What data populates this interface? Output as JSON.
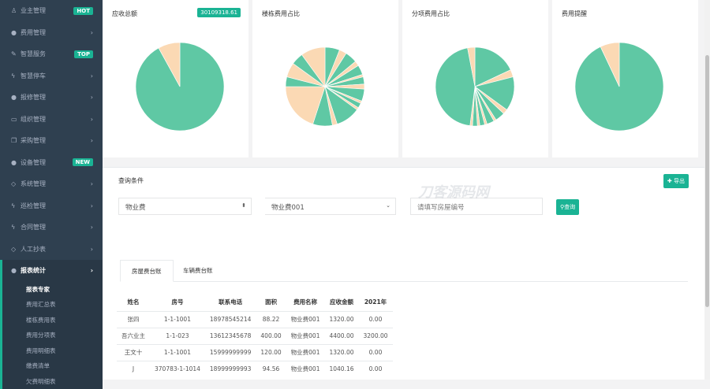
{
  "sidebar": {
    "items": [
      {
        "label": "业主管理",
        "icon": "user-icon",
        "badge": "HOT"
      },
      {
        "label": "费用管理",
        "icon": "globe-icon"
      },
      {
        "label": "智慧服务",
        "icon": "edit-icon",
        "badge": "TOP"
      },
      {
        "label": "智慧停车",
        "icon": "bolt-icon"
      },
      {
        "label": "报修管理",
        "icon": "globe-icon"
      },
      {
        "label": "组织管理",
        "icon": "desktop-icon"
      },
      {
        "label": "采购管理",
        "icon": "copy-icon"
      },
      {
        "label": "设备管理",
        "icon": "globe-icon",
        "badge": "NEW"
      },
      {
        "label": "系统管理",
        "icon": "diamond-icon"
      },
      {
        "label": "巡检管理",
        "icon": "bolt-icon"
      },
      {
        "label": "合同管理",
        "icon": "bolt-icon"
      },
      {
        "label": "人工抄表",
        "icon": "diamond-icon"
      },
      {
        "label": "报表统计",
        "icon": "globe-icon",
        "active": true
      }
    ],
    "sub_items": [
      "报表专家",
      "费用汇总表",
      "楼栋费用表",
      "费用分项表",
      "费用明细表",
      "缴费清单",
      "欠费明细表"
    ]
  },
  "cards": [
    {
      "title": "应收总额",
      "amount": "30109318.61"
    },
    {
      "title": "楼栋费用占比"
    },
    {
      "title": "分项费用占比"
    },
    {
      "title": "费用提醒"
    }
  ],
  "colors": {
    "teal": "#5fc8a4",
    "peach": "#fbd9b4",
    "accent": "#1ab394",
    "sidebar": "#2f4050"
  },
  "chart_data": [
    {
      "type": "pie",
      "values": [
        92,
        8
      ]
    },
    {
      "type": "pie",
      "values": [
        6,
        3,
        5,
        2,
        4,
        1,
        3,
        2,
        5,
        1,
        2,
        1,
        10,
        2,
        8,
        20,
        4,
        6,
        5,
        10
      ]
    },
    {
      "type": "pie",
      "values": [
        18,
        3,
        14,
        2,
        4,
        1,
        3,
        1,
        2,
        1,
        2,
        1,
        45,
        3
      ]
    },
    {
      "type": "pie",
      "values": [
        93,
        7
      ]
    }
  ],
  "query": {
    "title": "查询条件",
    "export": "导出",
    "fee_type": "物业费",
    "fee_item": "物业费001",
    "room_placeholder": "请填写房屋编号",
    "search": "查询"
  },
  "tabs": [
    "房屋费台账",
    "车辆费台账"
  ],
  "table": {
    "headers": [
      "姓名",
      "房号",
      "联系电话",
      "面积",
      "费用名称",
      "应收金额",
      "2021年"
    ],
    "rows": [
      [
        "张四",
        "1-1-1001",
        "18978545214",
        "88.22",
        "物业费001",
        "1320.00",
        "0.00"
      ],
      [
        "吾六业主",
        "1-1-023",
        "13612345678",
        "400.00",
        "物业费001",
        "4400.00",
        "3200.00"
      ],
      [
        "王文十",
        "1-1-1001",
        "15999999999",
        "120.00",
        "物业费001",
        "1320.00",
        "0.00"
      ],
      [
        "J",
        "370783-1-1014",
        "18999999993",
        "94.56",
        "物业费001",
        "1040.16",
        "0.00"
      ]
    ]
  },
  "watermark": "刀客源码网"
}
